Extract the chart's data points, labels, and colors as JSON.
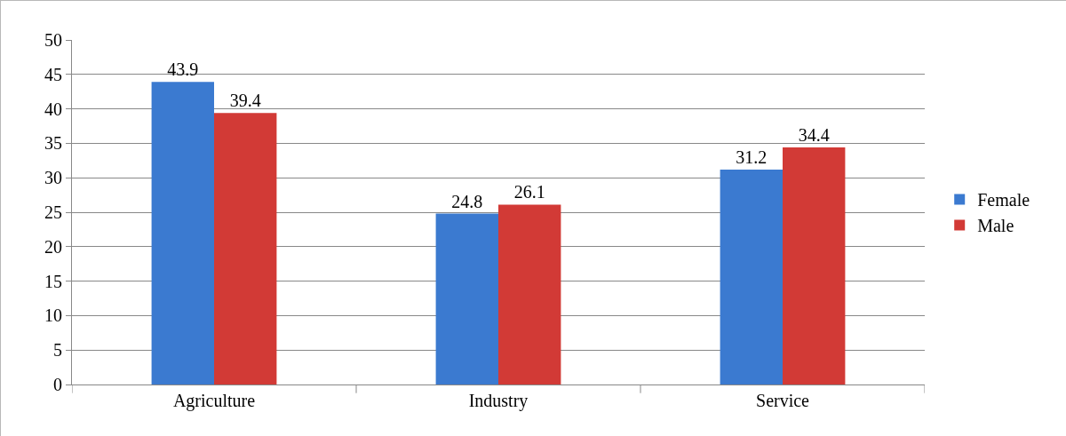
{
  "chart_data": {
    "type": "bar",
    "categories": [
      "Agriculture",
      "Industry",
      "Service"
    ],
    "series": [
      {
        "name": "Female",
        "color": "#3b7ad0",
        "values": [
          43.9,
          24.8,
          31.2
        ]
      },
      {
        "name": "Male",
        "color": "#d23a36",
        "values": [
          39.4,
          26.1,
          34.4
        ]
      }
    ],
    "ylim": [
      0,
      50
    ],
    "yticks": [
      0,
      5,
      10,
      15,
      20,
      25,
      30,
      35,
      40,
      45,
      50
    ],
    "grid": "y",
    "legend": "right",
    "data_labels": true
  }
}
